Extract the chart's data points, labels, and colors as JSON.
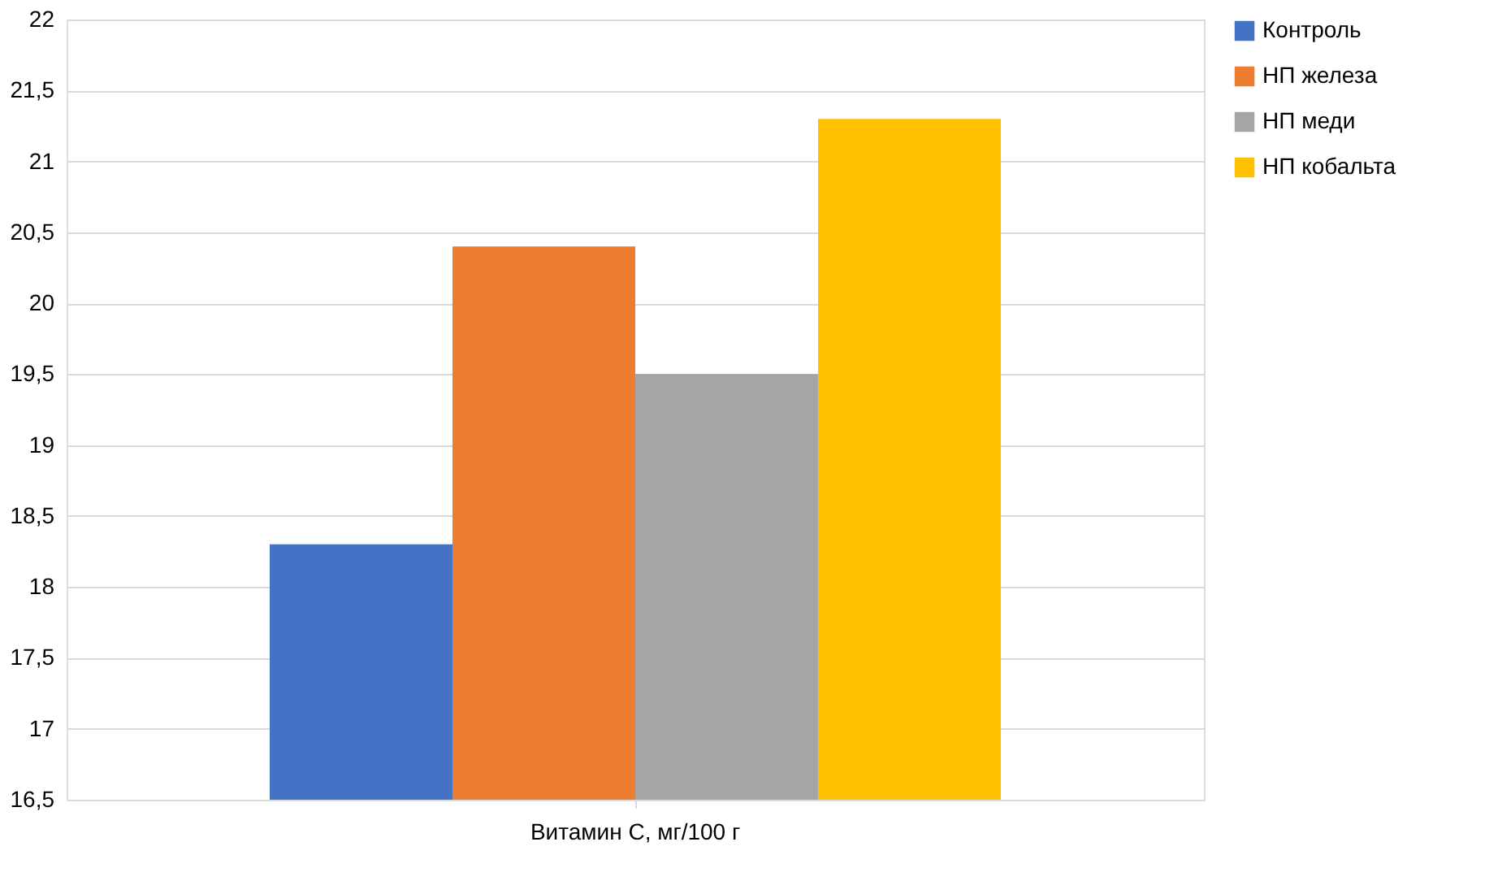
{
  "chart_data": {
    "type": "bar",
    "categories": [
      "Витамин С, мг/100 г"
    ],
    "series": [
      {
        "name": "Контроль",
        "color": "#4472c4",
        "values": [
          18.3
        ]
      },
      {
        "name": "НП железа",
        "color": "#ed7d31",
        "values": [
          20.4
        ]
      },
      {
        "name": "НП меди",
        "color": "#a5a5a5",
        "values": [
          19.5
        ]
      },
      {
        "name": "НП кобальта",
        "color": "#ffc000",
        "values": [
          21.3
        ]
      }
    ],
    "ylim": [
      16.5,
      22
    ],
    "yticks": [
      {
        "value": 16.5,
        "label": "16,5"
      },
      17,
      {
        "value": 17.5,
        "label": "17,5"
      },
      18,
      {
        "value": 18.5,
        "label": "18,5"
      },
      19,
      {
        "value": 19.5,
        "label": "19,5"
      },
      20,
      {
        "value": 20.5,
        "label": "20,5"
      },
      21,
      {
        "value": 21.5,
        "label": "21,5"
      },
      22
    ],
    "grid": "y",
    "legend": "right"
  }
}
